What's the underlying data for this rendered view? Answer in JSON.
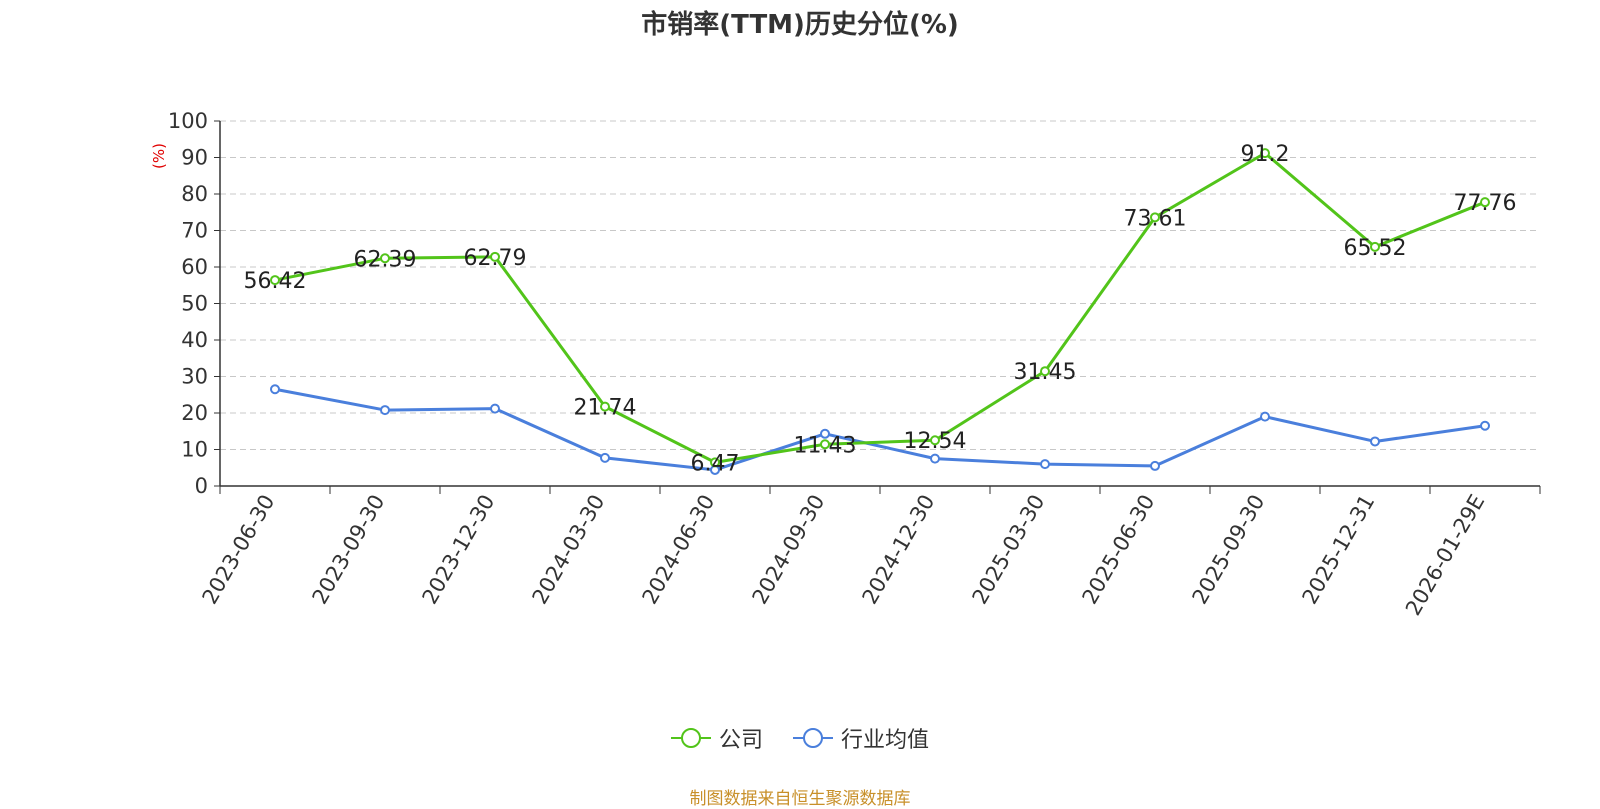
{
  "title": "市销率(TTM)历史分位(%)",
  "source": "制图数据来自恒生聚源数据库",
  "chart_data": {
    "type": "line",
    "title": "市销率(TTM)历史分位(%)",
    "ylabel": "(%)",
    "ylim": [
      0,
      100
    ],
    "yticks": [
      0,
      10,
      20,
      30,
      40,
      50,
      60,
      70,
      80,
      90,
      100
    ],
    "categories": [
      "2023-06-30",
      "2023-09-30",
      "2023-12-30",
      "2024-03-30",
      "2024-06-30",
      "2024-09-30",
      "2024-12-30",
      "2025-03-30",
      "2025-06-30",
      "2025-09-30",
      "2025-12-31",
      "2026-01-29E"
    ],
    "grid": true,
    "legend_position": "bottom",
    "series": [
      {
        "name": "公司",
        "color": "#52c41a",
        "values": [
          56.42,
          62.39,
          62.79,
          21.74,
          6.47,
          11.43,
          12.54,
          31.45,
          73.61,
          91.2,
          65.52,
          77.76
        ],
        "data_labels": [
          "56.42",
          "62.39",
          "62.79",
          "21.74",
          "6.47",
          "11.43",
          "12.54",
          "31.45",
          "73.61",
          "91.2",
          "65.52",
          "77.76"
        ]
      },
      {
        "name": "行业均值",
        "color": "#4a7fdc",
        "values": [
          26.5,
          20.8,
          21.2,
          7.7,
          4.4,
          14.3,
          7.5,
          6.0,
          5.5,
          19.0,
          12.2,
          16.5
        ]
      }
    ]
  }
}
